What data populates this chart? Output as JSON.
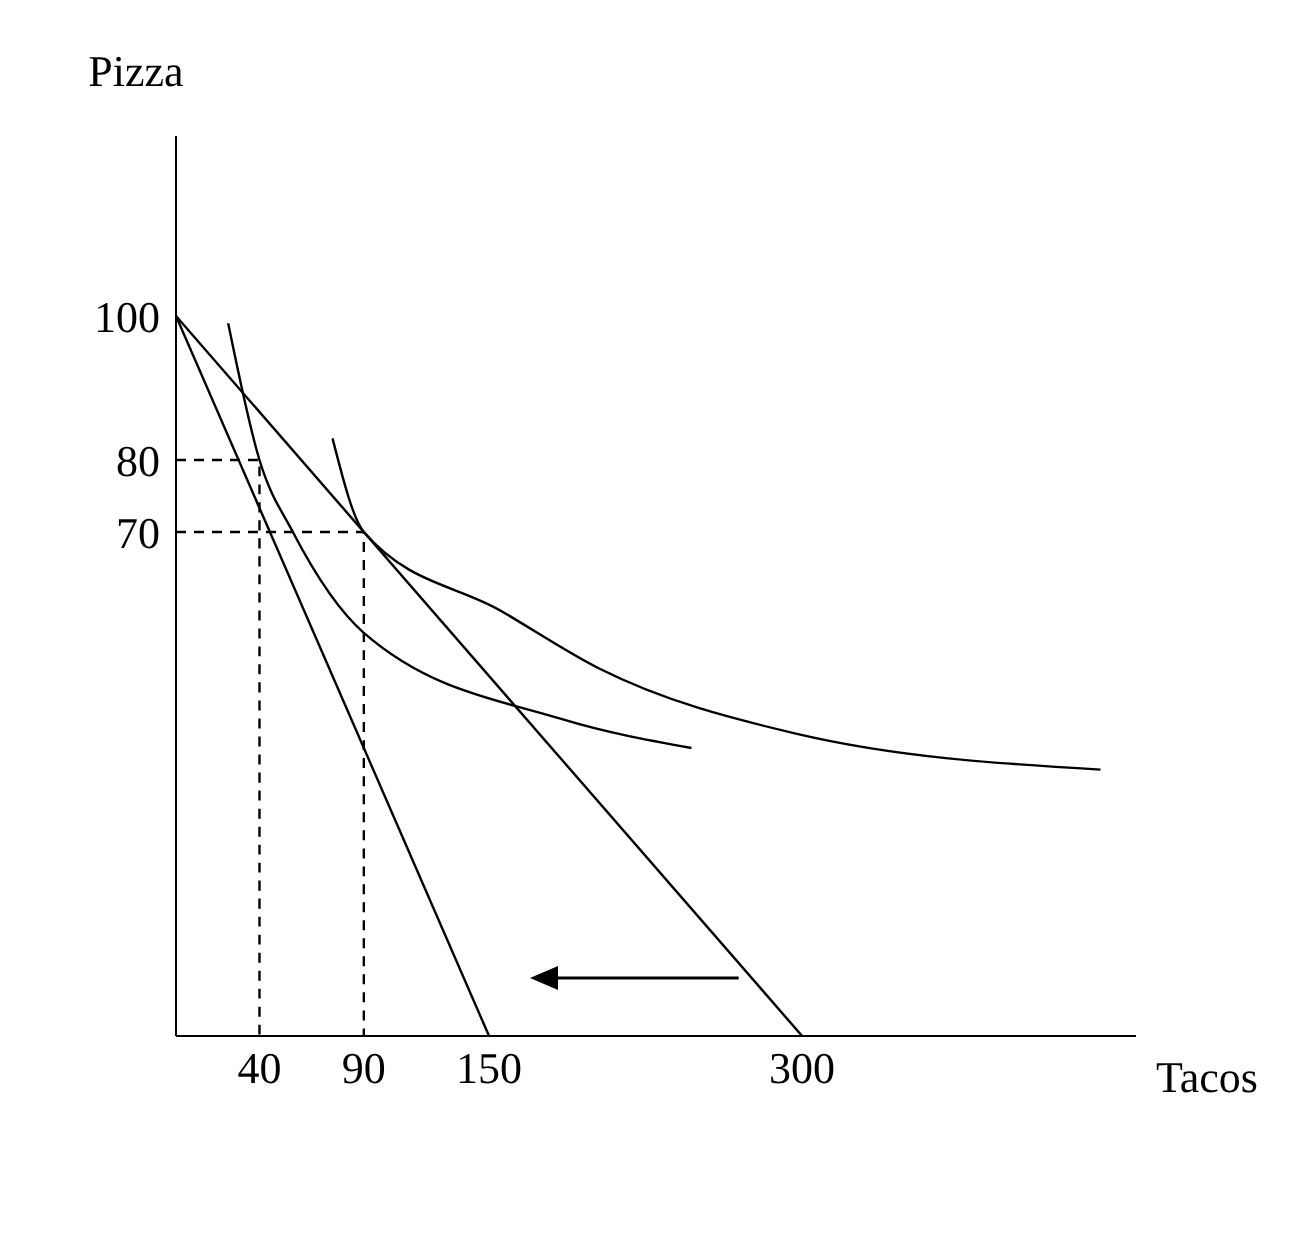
{
  "chart_data": {
    "type": "line",
    "xlabel": "Tacos",
    "ylabel": "Pizza",
    "xlim": [
      0,
      460
    ],
    "ylim": [
      0,
      125
    ],
    "xticks": [
      40,
      90,
      150,
      300
    ],
    "yticks": [
      70,
      80,
      100
    ],
    "marker": "none",
    "series": [
      {
        "color": "#000000",
        "x": [
          0,
          150
        ],
        "values": [
          100,
          0
        ]
      },
      {
        "color": "#000000",
        "x": [
          0,
          300
        ],
        "values": [
          100,
          0
        ]
      },
      {
        "color": "#000000",
        "x": [
          25,
          40,
          56,
          90,
          185,
          247
        ],
        "values": [
          99,
          80,
          70,
          56,
          44,
          40
        ]
      },
      {
        "color": "#000000",
        "x": [
          75,
          90,
          156,
          203,
          297,
          443
        ],
        "values": [
          83,
          70,
          59,
          51,
          42,
          37
        ]
      },
      {
        "color": "#000000",
        "line_style": "dashed",
        "x": [
          0,
          40,
          40
        ],
        "values": [
          80,
          80,
          0
        ]
      },
      {
        "color": "#000000",
        "line_style": "dashed",
        "x": [
          0,
          90,
          90
        ],
        "values": [
          70,
          70,
          0
        ]
      }
    ]
  }
}
